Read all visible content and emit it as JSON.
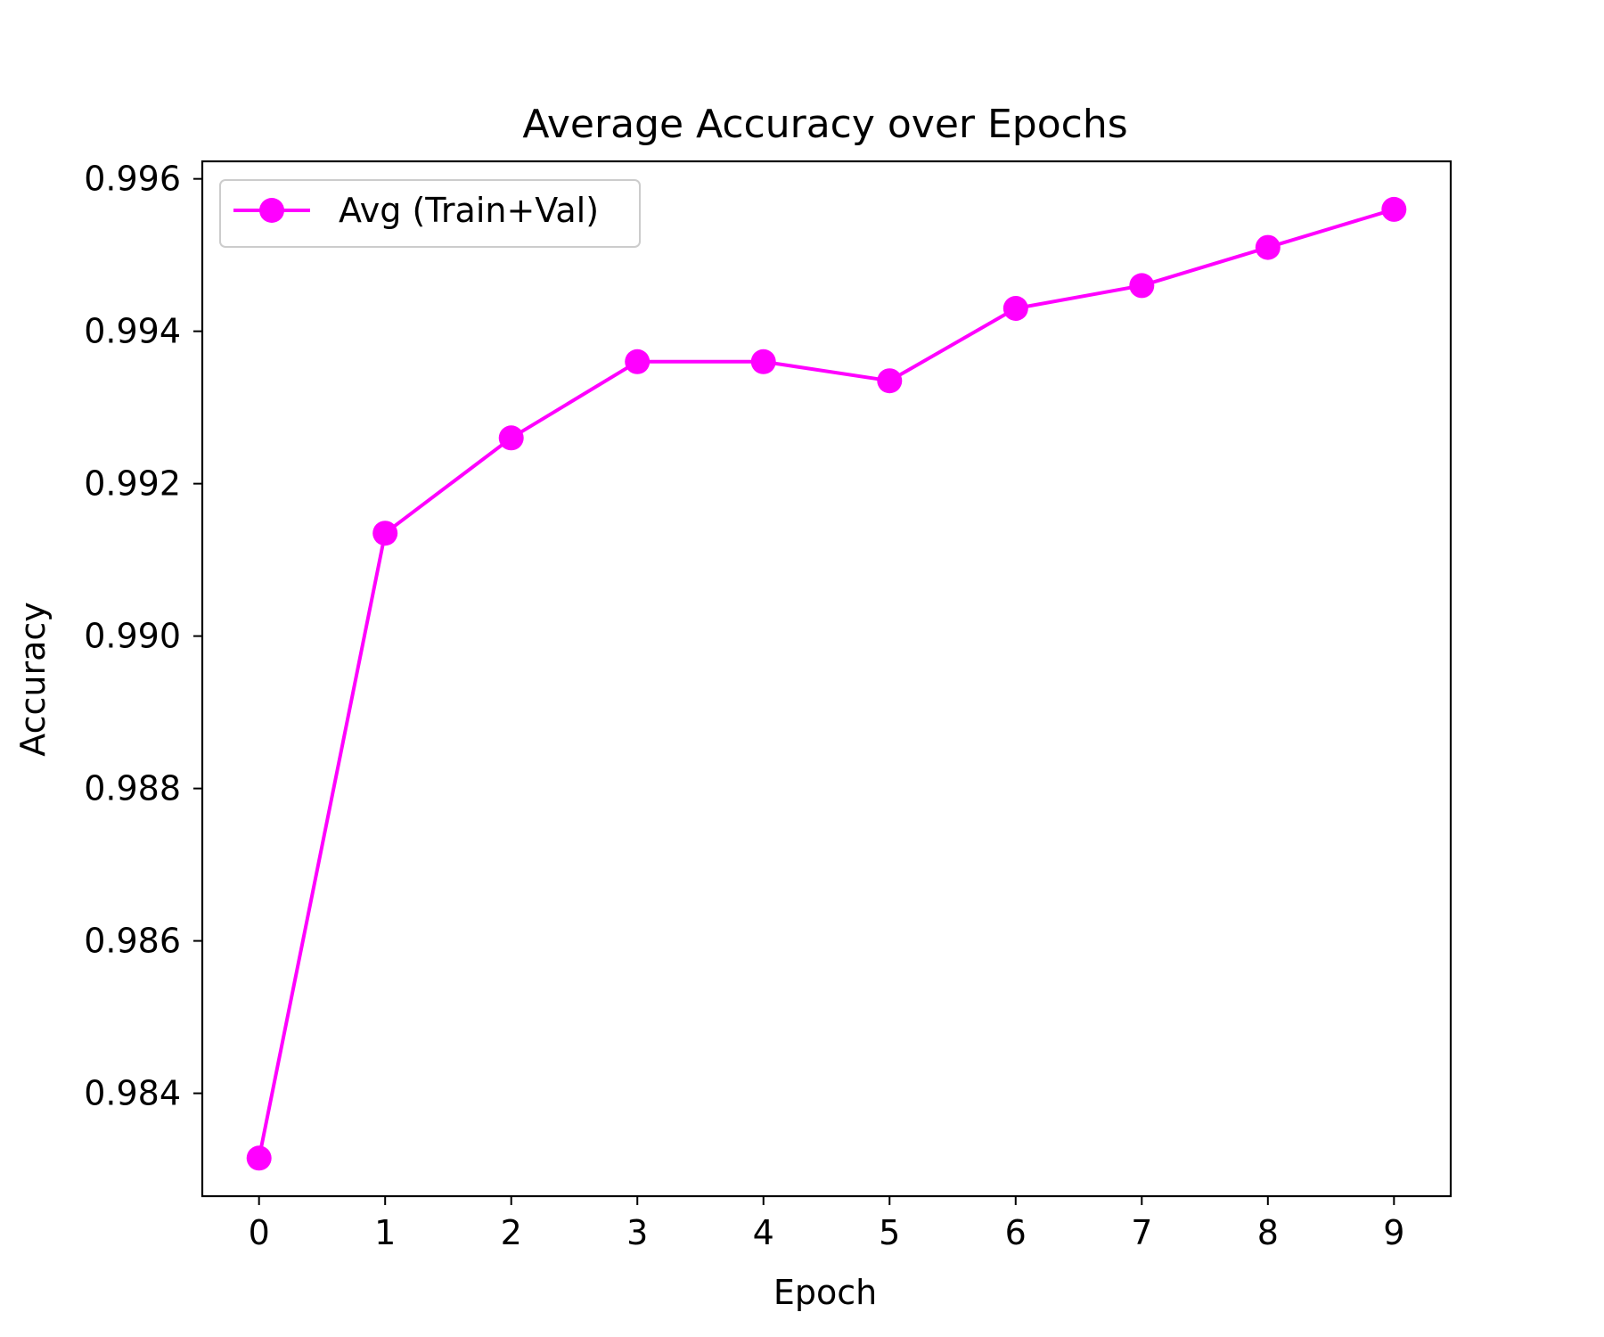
{
  "chart_data": {
    "type": "line",
    "title": "Average Accuracy over Epochs",
    "xlabel": "Epoch",
    "ylabel": "Accuracy",
    "x": [
      0,
      1,
      2,
      3,
      4,
      5,
      6,
      7,
      8,
      9
    ],
    "series": [
      {
        "name": "Avg (Train+Val)",
        "color": "#ff00ff",
        "marker": "circle",
        "values": [
          0.98315,
          0.99135,
          0.9926,
          0.9936,
          0.9936,
          0.99335,
          0.9943,
          0.9946,
          0.9951,
          0.9956
        ]
      }
    ],
    "xlim": [
      -0.45,
      9.45
    ],
    "ylim": [
      0.98265,
      0.99623
    ],
    "xticks": [
      "0",
      "1",
      "2",
      "3",
      "4",
      "5",
      "6",
      "7",
      "8",
      "9"
    ],
    "yticks": [
      "0.984",
      "0.986",
      "0.988",
      "0.990",
      "0.992",
      "0.994",
      "0.996"
    ],
    "grid": false,
    "legend_position": "upper-left"
  }
}
